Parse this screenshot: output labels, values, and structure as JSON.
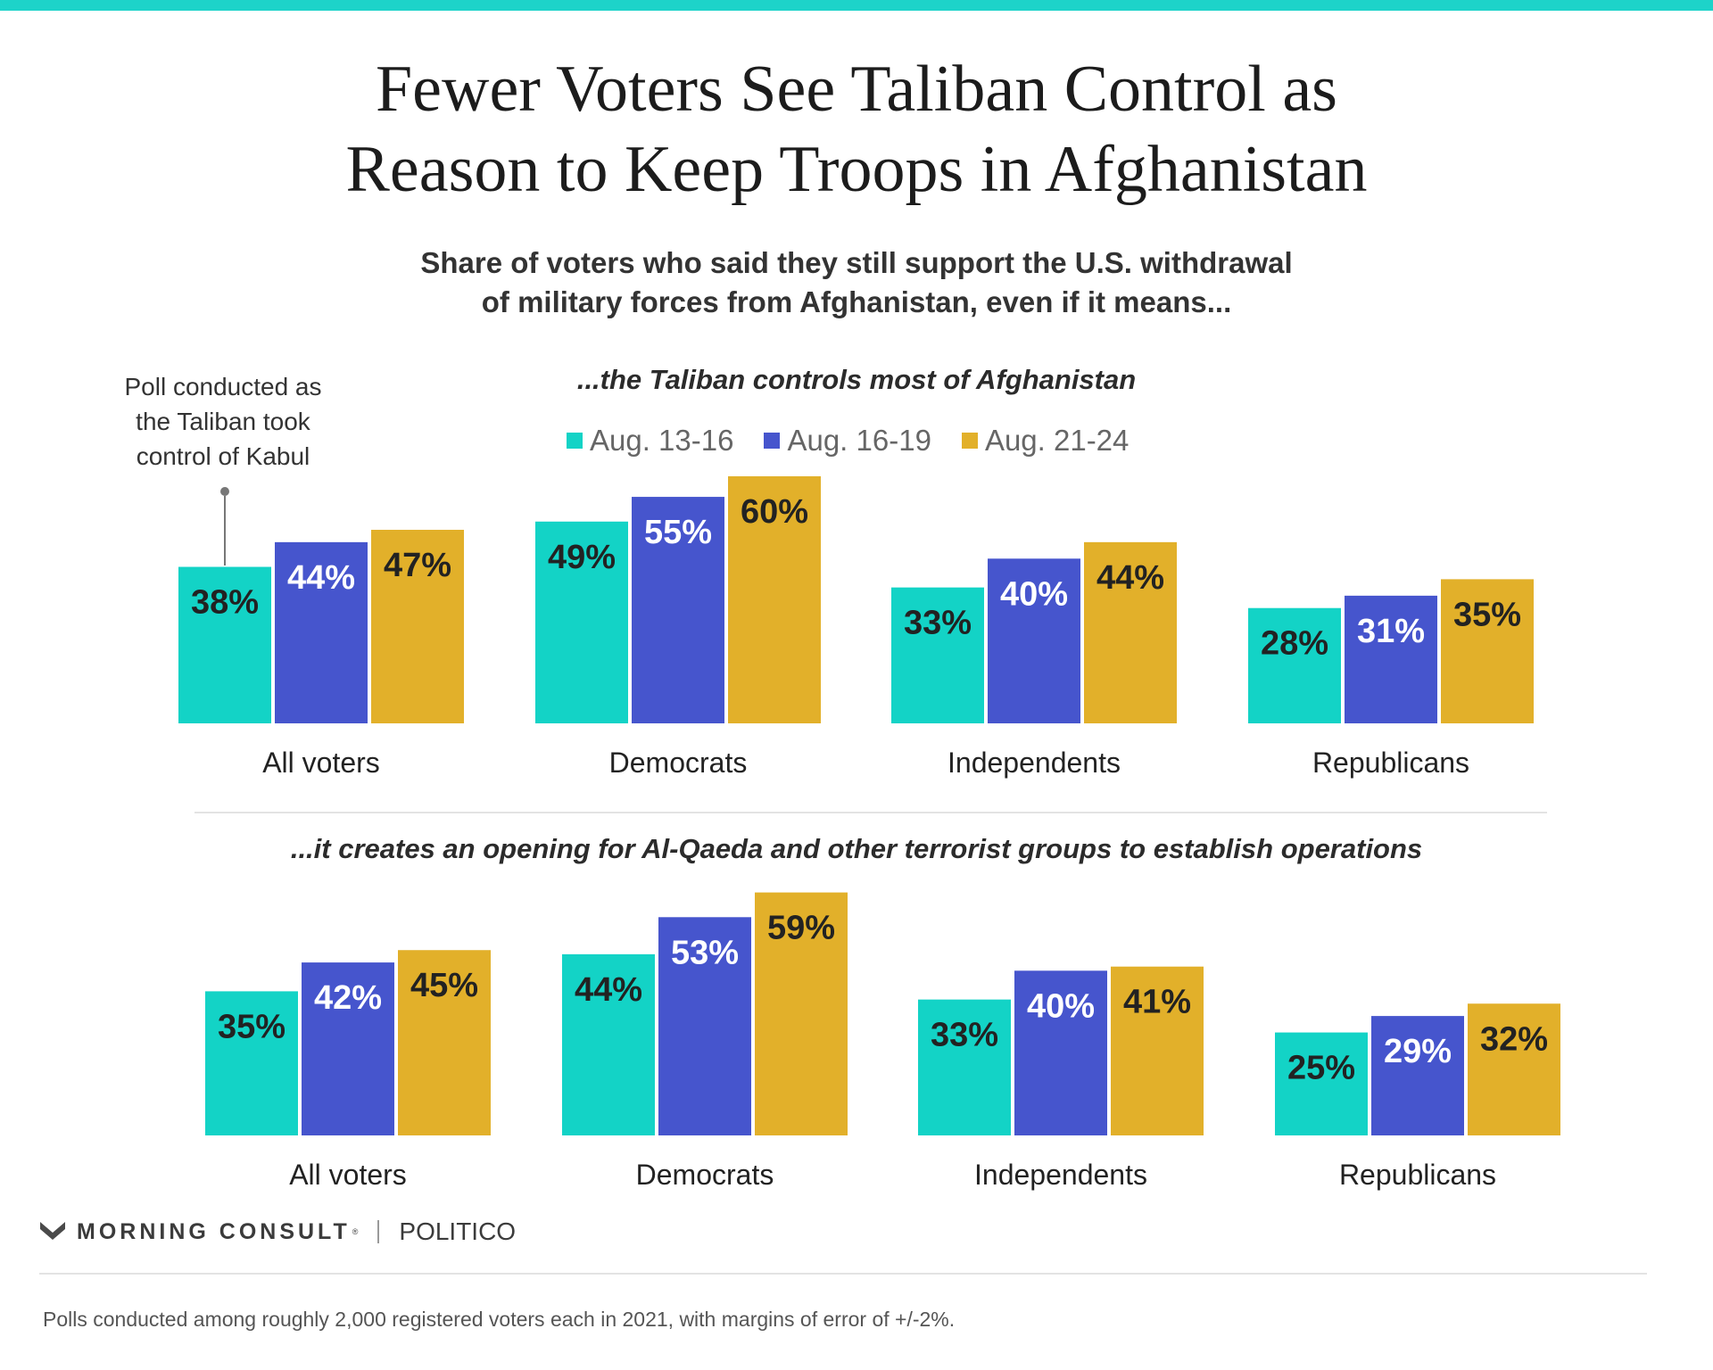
{
  "colors": {
    "top_bar": "#1dd3c9",
    "series": [
      "#13d3c6",
      "#4655cd",
      "#e2b02a"
    ],
    "label_dark": "#222222",
    "label_light": "#ffffff"
  },
  "title_lines": [
    "Fewer Voters See Taliban Control as",
    "Reason to Keep Troops in Afghanistan"
  ],
  "subtitle_lines": [
    "Share of voters who said they still support the U.S. withdrawal",
    "of military forces from Afghanistan, even if it means..."
  ],
  "legend": [
    "Aug. 13-16",
    "Aug. 16-19",
    "Aug. 21-24"
  ],
  "annotation_lines": [
    "Poll conducted as",
    "the Taliban took",
    "control of Kabul"
  ],
  "chart_data": [
    {
      "type": "bar",
      "title": "...the Taliban controls most of Afghanistan",
      "categories": [
        "All voters",
        "Democrats",
        "Independents",
        "Republicans"
      ],
      "series": [
        {
          "name": "Aug. 13-16",
          "values": [
            38,
            49,
            33,
            28
          ],
          "labels": [
            "38%",
            "49%",
            "33%",
            "28%"
          ]
        },
        {
          "name": "Aug. 16-19",
          "values": [
            44,
            55,
            40,
            31
          ],
          "labels": [
            "44%",
            "55%",
            "40%",
            "31%"
          ]
        },
        {
          "name": "Aug. 21-24",
          "values": [
            47,
            60,
            44,
            35
          ],
          "labels": [
            "47%",
            "60%",
            "44%",
            "35%"
          ]
        }
      ],
      "ylim": [
        0,
        60
      ],
      "legend_position": "top",
      "grid": false
    },
    {
      "type": "bar",
      "title": "...it creates an opening for Al-Qaeda and other terrorist groups to establish operations",
      "categories": [
        "All voters",
        "Democrats",
        "Independents",
        "Republicans"
      ],
      "series": [
        {
          "name": "Aug. 13-16",
          "values": [
            35,
            44,
            33,
            25
          ],
          "labels": [
            "35%",
            "44%",
            "33%",
            "25%"
          ]
        },
        {
          "name": "Aug. 16-19",
          "values": [
            42,
            53,
            40,
            29
          ],
          "labels": [
            "42%",
            "53%",
            "40%",
            "29%"
          ]
        },
        {
          "name": "Aug. 21-24",
          "values": [
            45,
            59,
            41,
            32
          ],
          "labels": [
            "45%",
            "59%",
            "41%",
            "32%"
          ]
        }
      ],
      "ylim": [
        0,
        59
      ],
      "legend_position": "none",
      "grid": false
    }
  ],
  "logo": {
    "morning_consult": "MORNING CONSULT",
    "trademark": "®",
    "politico": "POLITICO"
  },
  "footnote": "Polls conducted among roughly 2,000 registered voters each in 2021, with margins of error of +/-2%."
}
